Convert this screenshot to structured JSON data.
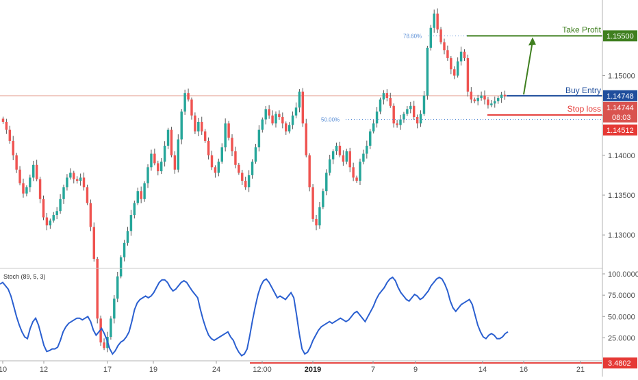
{
  "chart_data": [
    {
      "type": "candlestick",
      "title": "",
      "colors": {
        "up": "#26a69a",
        "down": "#ef5350",
        "wick": "#555555"
      },
      "y_ticks": [
        "1.15000",
        "1.14500",
        "1.14000",
        "1.13500",
        "1.13000"
      ],
      "ylim": [
        1.1258,
        1.1595
      ],
      "x_labels": [
        "10",
        "12",
        "17",
        "19",
        "24",
        "12:00",
        "2019",
        "7",
        "9",
        "14",
        "16",
        "21"
      ],
      "bold_x_label": "2019",
      "levels": {
        "take_profit": {
          "label": "Take Profit",
          "value": "1.15500",
          "color": "#3f7f1f"
        },
        "buy_entry": {
          "label": "Buy Entry",
          "value": "1.14748",
          "color": "#1f4e9c"
        },
        "current": {
          "value": "1.14744",
          "countdown": "08:03",
          "color": "#d9534f"
        },
        "stop_loss": {
          "label": "Stop loss",
          "value": "1.14512",
          "color": "#e53935"
        }
      },
      "fibonacci": [
        {
          "label": "78.60%",
          "value": 1.155
        },
        {
          "label": "50.00%",
          "value": 1.1445
        }
      ],
      "path": [
        1.1442,
        1.1432,
        1.1418,
        1.14,
        1.1382,
        1.1365,
        1.1352,
        1.136,
        1.1372,
        1.1388,
        1.137,
        1.1345,
        1.1322,
        1.1312,
        1.1318,
        1.1325,
        1.133,
        1.1345,
        1.136,
        1.1372,
        1.1378,
        1.137,
        1.1368,
        1.1372,
        1.136,
        1.134,
        1.131,
        1.127,
        1.1195,
        1.1165,
        1.1158,
        1.1172,
        1.1195,
        1.122,
        1.1248,
        1.1272,
        1.129,
        1.1305,
        1.1325,
        1.134,
        1.1355,
        1.1345,
        1.1365,
        1.1385,
        1.1402,
        1.139,
        1.138,
        1.1392,
        1.1412,
        1.1432,
        1.14,
        1.1382,
        1.142,
        1.1455,
        1.1478,
        1.147,
        1.145,
        1.143,
        1.1442,
        1.143,
        1.1418,
        1.14,
        1.1385,
        1.1378,
        1.1392,
        1.141,
        1.144,
        1.1422,
        1.1405,
        1.1388,
        1.1378,
        1.1368,
        1.136,
        1.1375,
        1.1392,
        1.141,
        1.1432,
        1.1445,
        1.1458,
        1.145,
        1.144,
        1.1452,
        1.1448,
        1.144,
        1.143,
        1.1438,
        1.145,
        1.146,
        1.148,
        1.144,
        1.14,
        1.136,
        1.132,
        1.1312,
        1.1335,
        1.1355,
        1.1378,
        1.1395,
        1.1405,
        1.1412,
        1.14,
        1.1392,
        1.1405,
        1.1385,
        1.1372,
        1.1368,
        1.1392,
        1.1402,
        1.1412,
        1.143,
        1.144,
        1.1455,
        1.147,
        1.1478,
        1.1472,
        1.1462,
        1.144,
        1.1438,
        1.1445,
        1.1452,
        1.1458,
        1.1462,
        1.1448,
        1.144,
        1.1452,
        1.1475,
        1.1535,
        1.156,
        1.1578,
        1.1558,
        1.1542,
        1.1532,
        1.1522,
        1.1508,
        1.15,
        1.1518,
        1.153,
        1.1522,
        1.148,
        1.147,
        1.1468,
        1.1472,
        1.1475,
        1.147,
        1.1463,
        1.1465,
        1.1468,
        1.1472,
        1.1476,
        1.1474
      ]
    },
    {
      "type": "line",
      "indicator_label": "Stoch (89, 5, 3)",
      "y_ticks": [
        "100.0000",
        "75.0000",
        "50.0000",
        "25.0000"
      ],
      "ylim": [
        -2,
        100
      ],
      "line_color": "#2a5fd0",
      "level": {
        "value": 3.4802,
        "label": "3.4802",
        "color": "#e53935"
      },
      "values": [
        88,
        90,
        86,
        82,
        74,
        62,
        50,
        40,
        32,
        26,
        24,
        36,
        44,
        48,
        40,
        28,
        16,
        9,
        10,
        12,
        12,
        14,
        22,
        32,
        38,
        42,
        44,
        46,
        48,
        48,
        46,
        48,
        50,
        44,
        34,
        28,
        32,
        36,
        30,
        22,
        12,
        6,
        10,
        16,
        20,
        22,
        26,
        32,
        44,
        58,
        66,
        70,
        72,
        74,
        72,
        74,
        78,
        84,
        90,
        93,
        93,
        90,
        84,
        80,
        82,
        86,
        90,
        92,
        90,
        85,
        80,
        76,
        72,
        58,
        46,
        36,
        28,
        24,
        22,
        24,
        26,
        28,
        30,
        32,
        26,
        22,
        14,
        8,
        4,
        6,
        12,
        28,
        46,
        62,
        76,
        86,
        92,
        94,
        90,
        84,
        78,
        72,
        74,
        72,
        70,
        74,
        78,
        72,
        52,
        30,
        12,
        6,
        8,
        14,
        22,
        28,
        34,
        38,
        40,
        42,
        44,
        42,
        44,
        46,
        48,
        46,
        44,
        46,
        50,
        54,
        56,
        52,
        48,
        44,
        50,
        56,
        62,
        70,
        76,
        80,
        84,
        90,
        94,
        96,
        92,
        84,
        78,
        74,
        70,
        68,
        72,
        76,
        74,
        70,
        72,
        76,
        80,
        86,
        90,
        94,
        96,
        94,
        88,
        80,
        68,
        60,
        56,
        60,
        64,
        66,
        68,
        70,
        64,
        52,
        40,
        32,
        26,
        24,
        28,
        30,
        28,
        24,
        24,
        26,
        30,
        32
      ]
    }
  ]
}
